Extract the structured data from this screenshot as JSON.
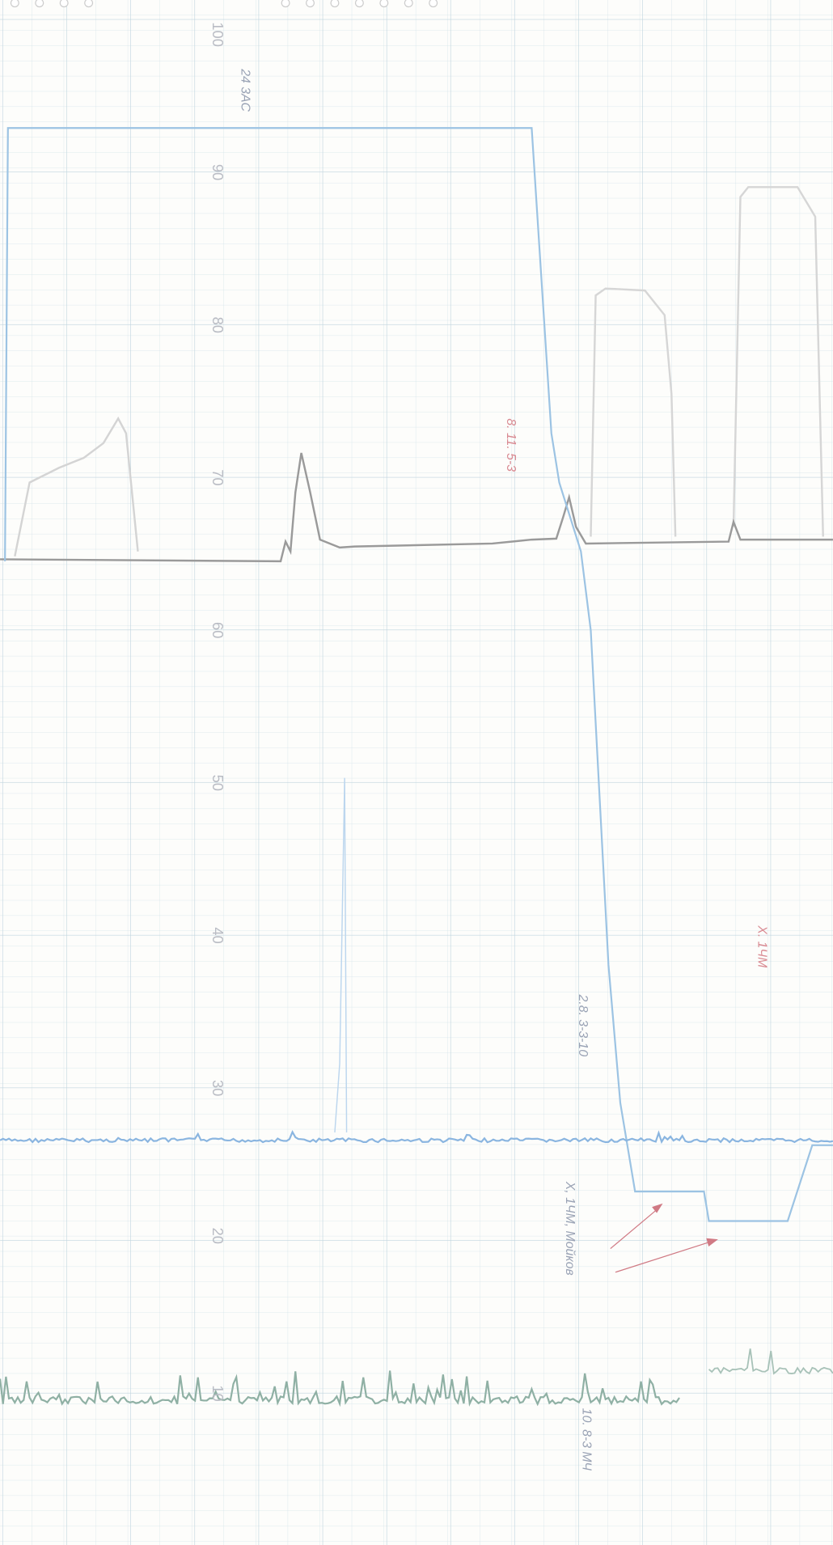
{
  "scale_labels": [
    "100",
    "90",
    "80",
    "70",
    "60",
    "50",
    "40",
    "30",
    "20",
    "10"
  ],
  "annotations": [
    "24 3AC",
    "8. 11. 5-3",
    "2.8. 3-3-10",
    "X. 1ЧМ",
    "X, 1ЧМ, Мойков",
    "10. 8-3 МЧ"
  ]
}
